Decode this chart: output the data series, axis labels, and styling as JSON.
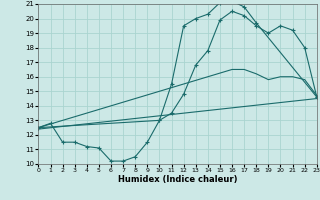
{
  "xlabel": "Humidex (Indice chaleur)",
  "bg_color": "#cce8e6",
  "grid_color": "#aad4d0",
  "line_color": "#1a6b6b",
  "xlim": [
    0,
    23
  ],
  "ylim": [
    10,
    21
  ],
  "xticks": [
    0,
    1,
    2,
    3,
    4,
    5,
    6,
    7,
    8,
    9,
    10,
    11,
    12,
    13,
    14,
    15,
    16,
    17,
    18,
    19,
    20,
    21,
    22,
    23
  ],
  "yticks": [
    10,
    11,
    12,
    13,
    14,
    15,
    16,
    17,
    18,
    19,
    20,
    21
  ],
  "curve1_x": [
    0,
    1,
    2,
    3,
    4,
    5,
    6,
    7,
    8,
    9,
    10,
    11,
    12,
    13,
    14,
    15,
    16,
    17,
    18,
    23
  ],
  "curve1_y": [
    12.5,
    12.8,
    11.5,
    11.5,
    11.2,
    11.1,
    10.2,
    10.2,
    10.5,
    11.5,
    13.0,
    15.5,
    19.5,
    20.0,
    20.3,
    21.1,
    21.2,
    20.8,
    19.7,
    14.6
  ],
  "curve2_x": [
    0,
    10,
    11,
    12,
    13,
    14,
    15,
    16,
    17,
    18,
    19,
    20,
    21,
    22,
    23
  ],
  "curve2_y": [
    12.5,
    13.0,
    13.5,
    14.8,
    16.8,
    17.8,
    19.9,
    20.5,
    20.2,
    19.5,
    19.0,
    19.5,
    19.2,
    18.0,
    14.6
  ],
  "curve3_x": [
    0,
    16,
    17,
    18,
    19,
    20,
    21,
    22,
    23
  ],
  "curve3_y": [
    12.5,
    16.5,
    16.5,
    16.2,
    15.8,
    16.0,
    16.0,
    15.8,
    14.7
  ],
  "curve4_x": [
    0,
    23
  ],
  "curve4_y": [
    12.4,
    14.5
  ]
}
